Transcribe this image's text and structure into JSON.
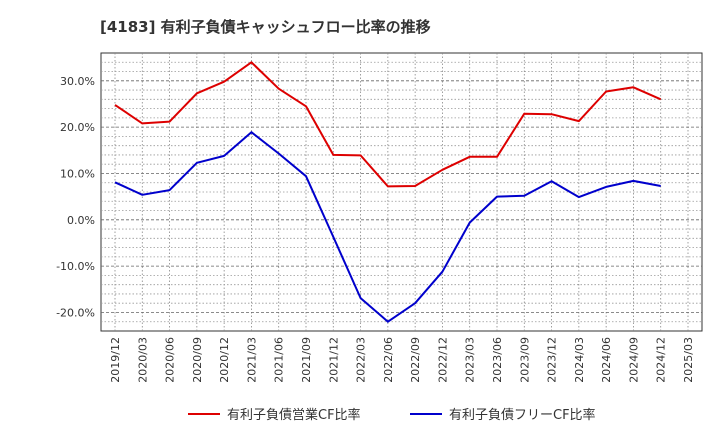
{
  "chart_data": {
    "type": "line",
    "title": "[4183]  有利子負債キャッシュフロー比率の推移",
    "x": [
      "2019/12",
      "2020/03",
      "2020/06",
      "2020/09",
      "2020/12",
      "2021/03",
      "2021/06",
      "2021/09",
      "2021/12",
      "2022/03",
      "2022/06",
      "2022/09",
      "2022/12",
      "2023/03",
      "2023/06",
      "2023/09",
      "2023/12",
      "2024/03",
      "2024/06",
      "2024/09",
      "2024/12",
      "2025/03"
    ],
    "ylim": [
      -24,
      36
    ],
    "yticks": [
      -20,
      -10,
      0,
      10,
      20,
      30
    ],
    "ytick_labels": [
      "-20.0%",
      "-10.0%",
      "0.0%",
      "10.0%",
      "20.0%",
      "30.0%"
    ],
    "grid": true,
    "legend_position": "bottom",
    "series": [
      {
        "name": "有利子負債営業CF比率",
        "color": "#dd0000",
        "values": [
          24.8,
          20.8,
          21.2,
          27.3,
          29.8,
          34.0,
          28.3,
          24.5,
          14.0,
          13.9,
          7.2,
          7.3,
          10.8,
          13.6,
          13.6,
          22.9,
          22.8,
          21.3,
          27.7,
          28.6,
          26.0,
          null
        ]
      },
      {
        "name": "有利子負債フリーCF比率",
        "color": "#0000cc",
        "values": [
          8.1,
          5.4,
          6.4,
          12.3,
          13.8,
          18.9,
          14.3,
          9.4,
          -3.7,
          -16.9,
          -22.0,
          -18.0,
          -11.2,
          -0.6,
          5.0,
          5.2,
          8.3,
          4.9,
          7.1,
          8.4,
          7.3,
          null
        ]
      }
    ]
  }
}
